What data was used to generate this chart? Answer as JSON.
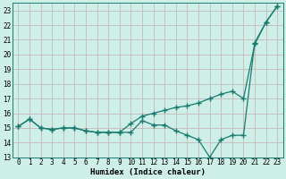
{
  "xlabel": "Humidex (Indice chaleur)",
  "line1_x": [
    0,
    1,
    2,
    3,
    4,
    5,
    6,
    7,
    8,
    9,
    10,
    11,
    12,
    13,
    14,
    15,
    16,
    17,
    18,
    19,
    20,
    21,
    22,
    23
  ],
  "line1_y": [
    15.1,
    15.6,
    15.0,
    14.9,
    15.0,
    15.0,
    14.8,
    14.7,
    14.7,
    14.7,
    14.7,
    15.5,
    15.2,
    15.2,
    14.8,
    14.5,
    14.2,
    13.0,
    14.2,
    14.5,
    14.5,
    20.8,
    22.2,
    23.3
  ],
  "line2_x": [
    0,
    1,
    2,
    3,
    4,
    5,
    6,
    7,
    8,
    9,
    10,
    11,
    12,
    13,
    14,
    15,
    16,
    17,
    18,
    19,
    20,
    21,
    22,
    23
  ],
  "line2_y": [
    15.1,
    15.6,
    15.0,
    14.9,
    15.0,
    15.0,
    14.8,
    14.7,
    14.7,
    14.7,
    15.3,
    15.8,
    16.0,
    16.2,
    16.4,
    16.5,
    16.7,
    17.0,
    17.3,
    17.5,
    17.0,
    20.7,
    22.2,
    23.3
  ],
  "line_color": "#1a7a6e",
  "bg_color": "#ceeee8",
  "fig_bg_color": "#ceeee8",
  "grid_color": "#c8b8b8",
  "xlim": [
    -0.5,
    23.5
  ],
  "ylim": [
    13,
    23.5
  ],
  "yticks": [
    13,
    14,
    15,
    16,
    17,
    18,
    19,
    20,
    21,
    22,
    23
  ],
  "xticks": [
    0,
    1,
    2,
    3,
    4,
    5,
    6,
    7,
    8,
    9,
    10,
    11,
    12,
    13,
    14,
    15,
    16,
    17,
    18,
    19,
    20,
    21,
    22,
    23
  ],
  "marker": "+",
  "markersize": 4,
  "linewidth": 0.9,
  "font_family": "monospace",
  "tick_fontsize": 5.5,
  "xlabel_fontsize": 6.5
}
